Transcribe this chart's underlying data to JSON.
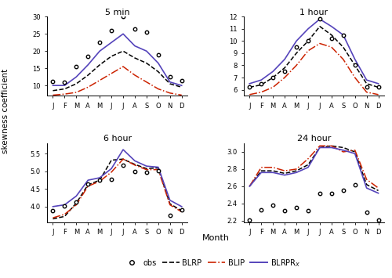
{
  "months": [
    "J",
    "F",
    "M",
    "A",
    "M",
    "J",
    "J",
    "A",
    "S",
    "O",
    "N",
    "D"
  ],
  "panels": [
    {
      "title": "5 min",
      "ylim": [
        7,
        30
      ],
      "yticks": [
        10,
        15,
        20,
        25,
        30
      ],
      "obs": [
        11.2,
        11.0,
        15.5,
        18.5,
        22.5,
        26.0,
        30.0,
        26.5,
        25.5,
        19.0,
        12.5,
        11.5
      ],
      "BLRP": [
        8.5,
        9.0,
        10.5,
        13.0,
        16.0,
        18.5,
        20.0,
        18.0,
        16.5,
        14.0,
        10.5,
        9.5
      ],
      "BLIP": [
        7.2,
        7.5,
        8.0,
        9.5,
        11.5,
        13.5,
        15.5,
        13.0,
        11.0,
        9.0,
        7.8,
        7.2
      ],
      "BLRPRx": [
        10.0,
        10.0,
        12.5,
        16.0,
        20.0,
        22.5,
        25.0,
        21.5,
        20.0,
        16.5,
        11.0,
        10.0
      ]
    },
    {
      "title": "1 hour",
      "ylim": [
        5.5,
        12
      ],
      "yticks": [
        6,
        7,
        8,
        9,
        10,
        11,
        12
      ],
      "obs": [
        6.2,
        6.5,
        7.0,
        7.5,
        9.5,
        10.0,
        11.8,
        10.2,
        10.5,
        8.0,
        6.2,
        6.2
      ],
      "BLRP": [
        6.2,
        6.4,
        7.0,
        7.8,
        9.0,
        10.0,
        11.2,
        10.5,
        9.5,
        8.0,
        6.5,
        6.2
      ],
      "BLIP": [
        5.6,
        5.8,
        6.2,
        7.0,
        8.0,
        9.2,
        9.8,
        9.5,
        8.5,
        7.0,
        5.8,
        5.6
      ],
      "BLRPRx": [
        6.5,
        6.8,
        7.5,
        8.5,
        10.0,
        11.0,
        11.8,
        11.2,
        10.5,
        8.5,
        6.8,
        6.5
      ]
    },
    {
      "title": "6 hour",
      "ylim": [
        3.55,
        5.8
      ],
      "yticks": [
        4.0,
        4.5,
        5.0,
        5.5
      ],
      "obs": [
        3.88,
        4.02,
        4.12,
        4.65,
        4.75,
        4.78,
        5.18,
        5.0,
        4.98,
        5.02,
        3.75,
        3.9
      ],
      "BLRP": [
        3.65,
        3.72,
        4.1,
        4.62,
        4.75,
        5.32,
        5.35,
        5.2,
        5.08,
        5.1,
        4.08,
        3.88
      ],
      "BLIP": [
        3.68,
        3.78,
        4.05,
        4.58,
        4.72,
        4.98,
        5.35,
        5.18,
        5.05,
        5.05,
        4.05,
        3.85
      ],
      "BLRPRx": [
        4.0,
        4.05,
        4.3,
        4.75,
        4.82,
        5.08,
        5.62,
        5.3,
        5.15,
        5.12,
        4.18,
        4.0
      ]
    },
    {
      "title": "24 hour",
      "ylim": [
        2.18,
        3.1
      ],
      "yticks": [
        2.2,
        2.4,
        2.6,
        2.8,
        3.0
      ],
      "obs": [
        2.21,
        2.33,
        2.38,
        2.32,
        2.35,
        2.32,
        2.52,
        2.52,
        2.55,
        2.62,
        2.3,
        2.21
      ],
      "BLRP": [
        2.6,
        2.78,
        2.78,
        2.75,
        2.78,
        2.85,
        3.05,
        3.07,
        3.05,
        3.0,
        2.62,
        2.55
      ],
      "BLIP": [
        2.6,
        2.82,
        2.82,
        2.78,
        2.8,
        2.92,
        3.07,
        3.07,
        3.0,
        3.02,
        2.68,
        2.58
      ],
      "BLRPRx": [
        2.6,
        2.76,
        2.76,
        2.73,
        2.76,
        2.82,
        3.05,
        3.05,
        3.02,
        2.98,
        2.58,
        2.52
      ]
    }
  ],
  "colors": {
    "BLRP": "#000000",
    "BLIP": "#cc2200",
    "BLRPRx": "#5544bb"
  },
  "month_label": "Month",
  "ylabel": "skewness coefficient"
}
